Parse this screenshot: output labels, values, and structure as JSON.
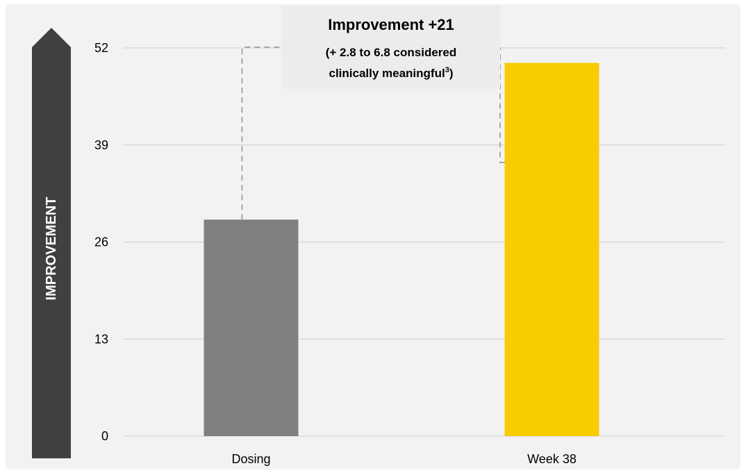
{
  "chart_data": {
    "type": "bar",
    "categories": [
      "Dosing",
      "Week 38"
    ],
    "values": [
      29,
      50
    ],
    "ylim": [
      0,
      52
    ],
    "yticks": [
      0,
      13,
      26,
      39,
      52
    ],
    "ylabel": "IMPROVEMENT",
    "xlabel": "",
    "grid": true,
    "bar_colors": [
      "#808080",
      "#f8cc00"
    ],
    "annotation": {
      "title": "Improvement +21",
      "line1": "(+ 2.8 to 6.8 considered",
      "line2_text": "clinically meaningful",
      "line2_sup": "3",
      "line2_end": ")"
    }
  },
  "colors": {
    "panel_bg": "#f2f2f2",
    "grid": "#d9d9d9",
    "axis_arrow": "#404040",
    "leader_line": "#a6a6a6",
    "text": "#000000"
  }
}
